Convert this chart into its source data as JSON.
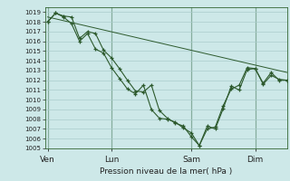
{
  "title": "",
  "xlabel": "Pression niveau de la mer( hPa )",
  "bg_color": "#cde8e8",
  "grid_color": "#aacccc",
  "line_color": "#2d5a2d",
  "vline_color": "#336633",
  "ylim_min": 1005,
  "ylim_max": 1019.5,
  "yticks": [
    1005,
    1006,
    1007,
    1008,
    1009,
    1010,
    1011,
    1012,
    1013,
    1014,
    1015,
    1016,
    1017,
    1018,
    1019
  ],
  "day_labels": [
    "Ven",
    "Lun",
    "Sam",
    "Dim"
  ],
  "day_positions": [
    0,
    48,
    108,
    156
  ],
  "vline_positions": [
    0,
    48,
    108,
    156
  ],
  "xlim_min": -2,
  "xlim_max": 180,
  "series1_x": [
    0,
    6,
    12,
    18,
    24,
    30,
    36,
    42,
    48,
    54,
    60,
    66,
    72,
    78,
    84,
    90,
    96,
    102,
    108,
    114,
    120,
    126,
    132,
    138,
    144,
    150,
    156,
    162,
    168,
    174,
    180
  ],
  "series1_y": [
    1018.0,
    1018.9,
    1018.6,
    1018.5,
    1016.3,
    1017.0,
    1016.8,
    1015.1,
    1014.3,
    1013.2,
    1012.0,
    1010.9,
    1010.8,
    1011.5,
    1008.9,
    1008.1,
    1007.6,
    1007.3,
    1006.2,
    1005.3,
    1007.3,
    1007.0,
    1009.1,
    1011.4,
    1011.0,
    1013.1,
    1013.2,
    1011.7,
    1012.8,
    1012.0,
    1012.0
  ],
  "series2_x": [
    0,
    6,
    12,
    18,
    24,
    30,
    36,
    42,
    48,
    54,
    60,
    66,
    72,
    78,
    84,
    90,
    96,
    102,
    108,
    114,
    120,
    126,
    132,
    138,
    144,
    150,
    156,
    162,
    168,
    174,
    180
  ],
  "series2_y": [
    1018.0,
    1018.9,
    1018.5,
    1017.8,
    1016.0,
    1016.8,
    1015.2,
    1014.8,
    1013.3,
    1012.2,
    1011.1,
    1010.6,
    1011.5,
    1009.0,
    1008.1,
    1008.0,
    1007.7,
    1007.1,
    1006.6,
    1005.3,
    1007.0,
    1007.2,
    1009.4,
    1011.1,
    1011.5,
    1013.3,
    1013.2,
    1011.6,
    1012.5,
    1012.1,
    1012.0
  ],
  "trend_x": [
    0,
    180
  ],
  "trend_y": [
    1018.5,
    1012.8
  ]
}
